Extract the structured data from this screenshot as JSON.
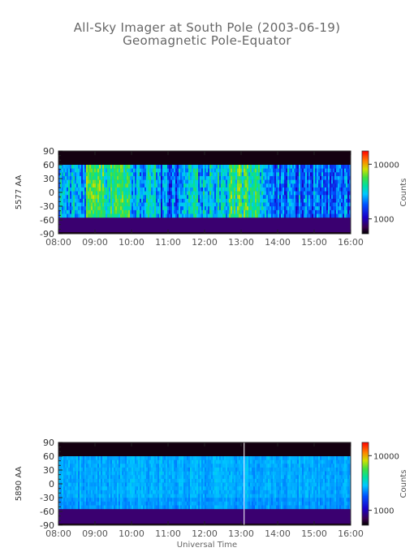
{
  "title": {
    "line1": "All-Sky Imager at South Pole (2003-06-19)",
    "line2": "Geomagnetic Pole-Equator"
  },
  "xlabel": "Universal Time",
  "chart_data": [
    {
      "type": "heatmap",
      "ylabel": "5577 AA",
      "x_ticks": [
        "08:00",
        "09:00",
        "10:00",
        "11:00",
        "12:00",
        "13:00",
        "14:00",
        "15:00",
        "16:00"
      ],
      "xlim": [
        "08:00",
        "16:00"
      ],
      "y_ticks": [
        90,
        60,
        30,
        0,
        -30,
        -60,
        -90
      ],
      "ylim": [
        -90,
        90
      ],
      "colorbar": {
        "label": "Counts",
        "ticks": [
          10000,
          1000
        ],
        "scale": "log"
      },
      "data_band_y": [
        -55,
        60
      ],
      "features": {
        "bright_intervals": [
          [
            "08:45",
            "09:55"
          ],
          [
            "12:40",
            "13:30"
          ]
        ],
        "dim_intervals": [
          [
            "10:40",
            "11:20"
          ],
          [
            "13:40",
            "16:00"
          ]
        ]
      }
    },
    {
      "type": "heatmap",
      "ylabel": "5890 AA",
      "x_ticks": [
        "08:00",
        "09:00",
        "10:00",
        "11:00",
        "12:00",
        "13:00",
        "14:00",
        "15:00",
        "16:00"
      ],
      "xlim": [
        "08:00",
        "16:00"
      ],
      "y_ticks": [
        90,
        60,
        30,
        0,
        -30,
        -60,
        -90
      ],
      "ylim": [
        -90,
        90
      ],
      "colorbar": {
        "label": "Counts",
        "ticks": [
          10000,
          1000
        ],
        "scale": "log"
      },
      "data_band_y": [
        -55,
        60
      ],
      "features": {
        "vertical_marker_time": "13:05"
      }
    }
  ]
}
